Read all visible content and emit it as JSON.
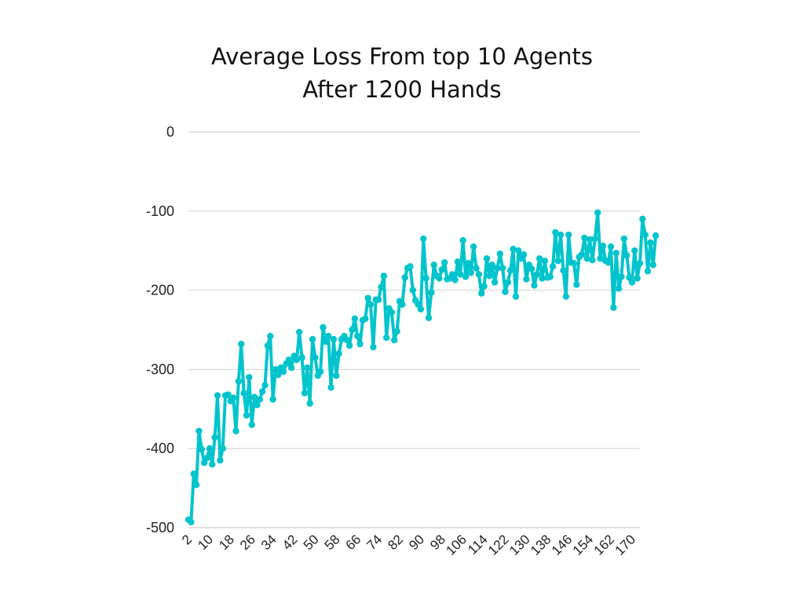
{
  "chart_data": {
    "type": "line",
    "title_lines": [
      "Average Loss From top 10 Agents",
      "After 1200 Hands"
    ],
    "xlabel": "",
    "ylabel": "",
    "ylim": [
      -500,
      0
    ],
    "yticks": [
      0,
      -100,
      -200,
      -300,
      -400,
      -500
    ],
    "xtick_labels": [
      "2",
      "10",
      "18",
      "26",
      "34",
      "42",
      "50",
      "58",
      "66",
      "74",
      "82",
      "90",
      "98",
      "106",
      "114",
      "122",
      "130",
      "138",
      "146",
      "154",
      "162",
      "170"
    ],
    "x_start": 1,
    "x_end": 172,
    "grid": true,
    "series": [
      {
        "name": "Average Loss",
        "color": "#00C4CC",
        "values": [
          -490,
          -493,
          -432,
          -446,
          -378,
          -401,
          -418,
          -412,
          -400,
          -420,
          -386,
          -333,
          -415,
          -400,
          -333,
          -332,
          -340,
          -336,
          -378,
          -315,
          -268,
          -330,
          -358,
          -310,
          -370,
          -335,
          -345,
          -338,
          -328,
          -320,
          -270,
          -258,
          -338,
          -300,
          -307,
          -298,
          -303,
          -293,
          -288,
          -298,
          -283,
          -288,
          -253,
          -285,
          -330,
          -298,
          -343,
          -262,
          -285,
          -308,
          -303,
          -247,
          -265,
          -258,
          -323,
          -262,
          -308,
          -280,
          -262,
          -258,
          -263,
          -270,
          -250,
          -236,
          -258,
          -268,
          -238,
          -236,
          -210,
          -218,
          -272,
          -212,
          -212,
          -196,
          -182,
          -260,
          -223,
          -228,
          -263,
          -252,
          -214,
          -218,
          -184,
          -172,
          -170,
          -200,
          -213,
          -218,
          -224,
          -135,
          -185,
          -235,
          -203,
          -168,
          -182,
          -185,
          -174,
          -165,
          -186,
          -185,
          -180,
          -187,
          -164,
          -180,
          -137,
          -183,
          -166,
          -178,
          -145,
          -172,
          -180,
          -204,
          -195,
          -160,
          -182,
          -168,
          -190,
          -172,
          -154,
          -172,
          -202,
          -190,
          -175,
          -148,
          -208,
          -150,
          -160,
          -155,
          -186,
          -168,
          -173,
          -194,
          -180,
          -160,
          -185,
          -163,
          -184,
          -183,
          -170,
          -127,
          -163,
          -130,
          -175,
          -208,
          -130,
          -165,
          -166,
          -193,
          -158,
          -155,
          -134,
          -160,
          -136,
          -162,
          -135,
          -102,
          -160,
          -144,
          -163,
          -165,
          -145,
          -222,
          -153,
          -198,
          -183,
          -135,
          -156,
          -184,
          -190,
          -150,
          -185,
          -166,
          -110,
          -130,
          -176,
          -140,
          -168,
          -131
        ]
      }
    ]
  }
}
